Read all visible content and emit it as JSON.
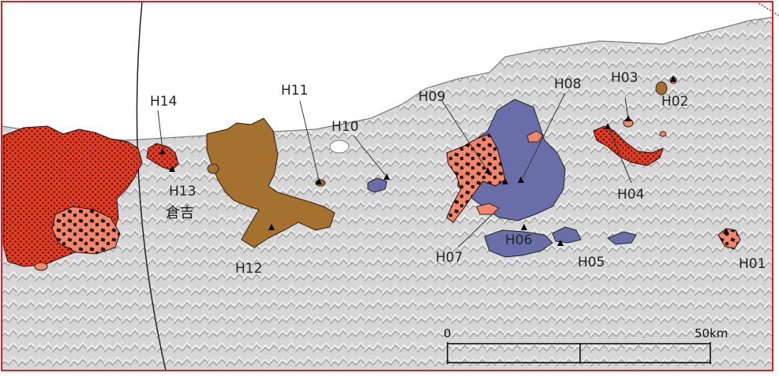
{
  "colors": {
    "frame": "#e02020",
    "land": "#d4d4d4",
    "relief_dark": "#a9a9a9",
    "sea": "#ffffff",
    "red_unit": "#e43a1e",
    "salmon_unit": "#f2866a",
    "brown_unit": "#a4722e",
    "blue_unit": "#6a6ea8",
    "marker": "#000000"
  },
  "volcano_labels": [
    "H01",
    "H02",
    "H03",
    "H04",
    "H05",
    "H06",
    "H07",
    "H08",
    "H09",
    "H10",
    "H11",
    "H12",
    "H13",
    "H14"
  ],
  "city_label": "倉吉",
  "scale_bar": {
    "start_label": "0",
    "end_label": "50km"
  }
}
